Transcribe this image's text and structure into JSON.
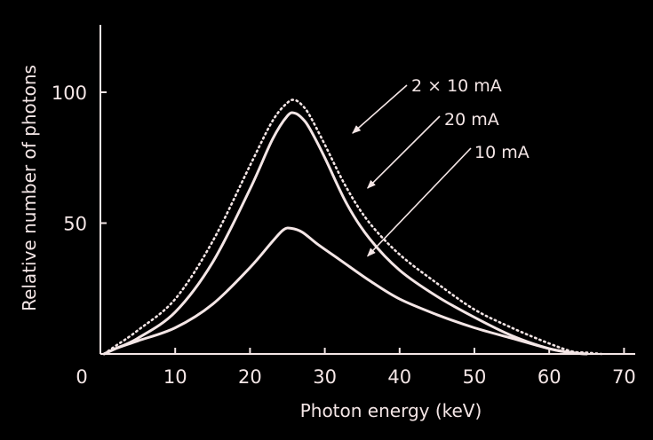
{
  "chart_data": {
    "type": "line",
    "xlabel": "Photon energy (keV)",
    "ylabel": "Relative number of photons",
    "xlim": [
      0,
      72
    ],
    "ylim": [
      0,
      125
    ],
    "x_ticks": [
      0,
      10,
      20,
      30,
      40,
      50,
      60,
      70
    ],
    "x_tick_labels": [
      "0",
      "10",
      "20",
      "30",
      "40",
      "50",
      "60",
      "70"
    ],
    "y_ticks": [
      50,
      100
    ],
    "y_tick_labels": [
      "50",
      "100"
    ],
    "grid": false,
    "series": [
      {
        "name": "2 × 10 mA",
        "style": "dotted",
        "color": "#f4e6e6",
        "x": [
          0.5,
          2,
          5,
          10,
          15,
          20,
          23,
          25,
          26,
          27,
          28,
          30,
          33,
          36,
          40,
          45,
          50,
          55,
          60,
          63,
          65,
          67
        ],
        "y": [
          0,
          3,
          9,
          21,
          43,
          72,
          89,
          96,
          97,
          95,
          91,
          80,
          63,
          50,
          38,
          27,
          17,
          10,
          4,
          1,
          0.5,
          0
        ]
      },
      {
        "name": "20 mA",
        "style": "solid",
        "color": "#f4e6e6",
        "x": [
          0.5,
          2,
          5,
          10,
          15,
          20,
          23,
          25,
          26,
          27,
          28,
          30,
          33,
          36,
          40,
          45,
          50,
          55,
          60,
          63,
          65
        ],
        "y": [
          0,
          2,
          6,
          16,
          35,
          63,
          82,
          91,
          92,
          90,
          86,
          75,
          57,
          44,
          32,
          22,
          14,
          7,
          2,
          0.5,
          0
        ]
      },
      {
        "name": "10 mA",
        "style": "solid",
        "color": "#f4e6e6",
        "x": [
          0.5,
          2,
          5,
          10,
          15,
          20,
          23,
          24.5,
          25.5,
          27,
          29,
          32,
          36,
          40,
          45,
          50,
          55,
          60,
          63,
          65
        ],
        "y": [
          0,
          2,
          5,
          10,
          19,
          33,
          43,
          47.5,
          48,
          46.5,
          42,
          36,
          28,
          21,
          15,
          10,
          6,
          2,
          0.5,
          0
        ]
      }
    ],
    "annotations": [
      {
        "text": "2 × 10 mA",
        "series": 0,
        "x": 33,
        "y": 82
      },
      {
        "text": "20 mA",
        "series": 1,
        "x": 35,
        "y": 61
      },
      {
        "text": "10 mA",
        "series": 2,
        "x": 35,
        "y": 35
      }
    ]
  }
}
